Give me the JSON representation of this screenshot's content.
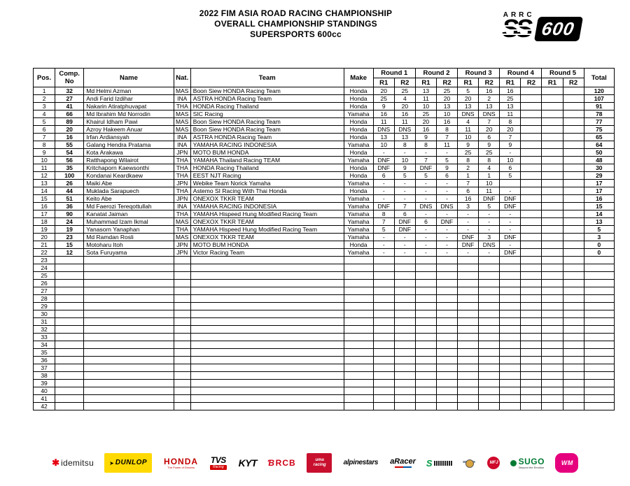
{
  "header": {
    "title_lines": [
      "2022 FIM ASIA ROAD RACING CHAMPIONSHIP",
      "OVERALL CHAMPIONSHIP STANDINGS",
      "SUPERSPORTS 600cc"
    ],
    "logo": {
      "series": "ARRC",
      "ss": "SS",
      "class_number": "600"
    }
  },
  "table": {
    "columns": {
      "pos": "Pos.",
      "comp_no_line1": "Comp.",
      "comp_no_line2": "No",
      "name": "Name",
      "nat": "Nat.",
      "team": "Team",
      "make": "Make",
      "rounds": [
        "Round 1",
        "Round 2",
        "Round 3",
        "Round 4",
        "Round 5"
      ],
      "race_sub": [
        "R1",
        "R2"
      ],
      "total": "Total"
    },
    "rows": [
      {
        "pos": "1",
        "no": "32",
        "name": "Md Helmi Azman",
        "nat": "MAS",
        "team": "Boon Siew HONDA Racing Team",
        "make": "Honda",
        "scores": [
          "20",
          "25",
          "13",
          "25",
          "5",
          "16",
          "16",
          "",
          "",
          ""
        ],
        "total": "120"
      },
      {
        "pos": "2",
        "no": "27",
        "name": "Andi Farid Izdihar",
        "nat": "INA",
        "team": "ASTRA HONDA Racing Team",
        "make": "Honda",
        "scores": [
          "25",
          "4",
          "11",
          "20",
          "20",
          "2",
          "25",
          "",
          "",
          ""
        ],
        "total": "107"
      },
      {
        "pos": "3",
        "no": "41",
        "name": "Nakarin Atiratphuvapat",
        "nat": "THA",
        "team": "HONDA Racing Thailand",
        "make": "Honda",
        "scores": [
          "9",
          "20",
          "10",
          "13",
          "13",
          "13",
          "13",
          "",
          "",
          ""
        ],
        "total": "91"
      },
      {
        "pos": "4",
        "no": "66",
        "name": "Md Ibrahim Md Norrodin",
        "nat": "MAS",
        "team": "SIC Racing",
        "make": "Yamaha",
        "scores": [
          "16",
          "16",
          "25",
          "10",
          "DNS",
          "DNS",
          "11",
          "",
          "",
          ""
        ],
        "total": "78"
      },
      {
        "pos": "5",
        "no": "89",
        "name": "Khairul Idham Pawi",
        "nat": "MAS",
        "team": "Boon Siew HONDA Racing Team",
        "make": "Honda",
        "scores": [
          "11",
          "11",
          "20",
          "16",
          "4",
          "7",
          "8",
          "",
          "",
          ""
        ],
        "total": "77"
      },
      {
        "pos": "6",
        "no": "20",
        "name": "Azroy Hakeem Anuar",
        "nat": "MAS",
        "team": "Boon Siew HONDA Racing Team",
        "make": "Honda",
        "scores": [
          "DNS",
          "DNS",
          "16",
          "8",
          "11",
          "20",
          "20",
          "",
          "",
          ""
        ],
        "total": "75"
      },
      {
        "pos": "7",
        "no": "16",
        "name": "Irfan Ardiansyah",
        "nat": "INA",
        "team": "ASTRA HONDA Racing Team",
        "make": "Honda",
        "scores": [
          "13",
          "13",
          "9",
          "7",
          "10",
          "6",
          "7",
          "",
          "",
          ""
        ],
        "total": "65"
      },
      {
        "pos": "8",
        "no": "55",
        "name": "Galang Hendra Pratama",
        "nat": "INA",
        "team": "YAMAHA RACING INDONESIA",
        "make": "Yamaha",
        "scores": [
          "10",
          "8",
          "8",
          "11",
          "9",
          "9",
          "9",
          "",
          "",
          ""
        ],
        "total": "64"
      },
      {
        "pos": "9",
        "no": "54",
        "name": "Kota Arakawa",
        "nat": "JPN",
        "team": "MOTO BUM HONDA",
        "make": "Honda",
        "scores": [
          "-",
          "-",
          "-",
          "-",
          "25",
          "25",
          "-",
          "",
          "",
          ""
        ],
        "total": "50"
      },
      {
        "pos": "10",
        "no": "56",
        "name": "Ratthapong Wilairot",
        "nat": "THA",
        "team": "YAMAHA Thailand Racing TEAM",
        "make": "Yamaha",
        "scores": [
          "DNF",
          "10",
          "7",
          "5",
          "8",
          "8",
          "10",
          "",
          "",
          ""
        ],
        "total": "48"
      },
      {
        "pos": "11",
        "no": "35",
        "name": "Kritchaporn Kaewsonthi",
        "nat": "THA",
        "team": "HONDA Racing Thailand",
        "make": "Honda",
        "scores": [
          "DNF",
          "9",
          "DNF",
          "9",
          "2",
          "4",
          "6",
          "",
          "",
          ""
        ],
        "total": "30"
      },
      {
        "pos": "12",
        "no": "100",
        "name": "Kondanai Keardkaew",
        "nat": "THA",
        "team": "EEST NJT Racing",
        "make": "Honda",
        "scores": [
          "6",
          "5",
          "5",
          "6",
          "1",
          "1",
          "5",
          "",
          "",
          ""
        ],
        "total": "29"
      },
      {
        "pos": "13",
        "no": "26",
        "name": "Maiki Abe",
        "nat": "JPN",
        "team": "Webike Team Norick Yamaha",
        "make": "Yamaha",
        "scores": [
          "-",
          "-",
          "-",
          "-",
          "7",
          "10",
          "",
          "",
          "",
          ""
        ],
        "total": "17"
      },
      {
        "pos": "14",
        "no": "44",
        "name": "Muklada Sarapuech",
        "nat": "THA",
        "team": "Astemo SI Racing With Thai Honda",
        "make": "Honda",
        "scores": [
          "-",
          "-",
          "-",
          "-",
          "6",
          "11",
          "-",
          "",
          "",
          ""
        ],
        "total": "17"
      },
      {
        "pos": "15",
        "no": "51",
        "name": "Keito Abe",
        "nat": "JPN",
        "team": "ONEXOX TKKR TEAM",
        "make": "Yamaha",
        "scores": [
          "-",
          "-",
          "-",
          "-",
          "16",
          "DNF",
          "DNF",
          "",
          "",
          ""
        ],
        "total": "16"
      },
      {
        "pos": "16",
        "no": "36",
        "name": "Md Faerozi Tereqottullah",
        "nat": "INA",
        "team": "YAMAHA RACING INDONESIA",
        "make": "Yamaha",
        "scores": [
          "DNF",
          "7",
          "DNS",
          "DNS",
          "3",
          "5",
          "DNF",
          "",
          "",
          ""
        ],
        "total": "15"
      },
      {
        "pos": "17",
        "no": "90",
        "name": "Kanatat Jaiman",
        "nat": "THA",
        "team": "YAMAHA Hispeed Hung Modified Racing Team",
        "make": "Yamaha",
        "scores": [
          "8",
          "6",
          "-",
          "-",
          "-",
          "-",
          "-",
          "",
          "",
          ""
        ],
        "total": "14"
      },
      {
        "pos": "18",
        "no": "24",
        "name": "Muhammad Izam Ikmal",
        "nat": "MAS",
        "team": "ONEXOX TKKR TEAM",
        "make": "Yamaha",
        "scores": [
          "7",
          "DNF",
          "6",
          "DNF",
          "-",
          "-",
          "-",
          "",
          "",
          ""
        ],
        "total": "13"
      },
      {
        "pos": "19",
        "no": "19",
        "name": "Yanasorn Yanaphan",
        "nat": "THA",
        "team": "YAMAHA Hispeed Hung Modified Racing Team",
        "make": "Yamaha",
        "scores": [
          "5",
          "DNF",
          "-",
          "-",
          "-",
          "-",
          "-",
          "",
          "",
          ""
        ],
        "total": "5"
      },
      {
        "pos": "20",
        "no": "23",
        "name": "Md Ramdan Rosli",
        "nat": "MAS",
        "team": "ONEXOX TKKR TEAM",
        "make": "Yamaha",
        "scores": [
          "-",
          "-",
          "-",
          "-",
          "DNF",
          "3",
          "DNF",
          "",
          "",
          ""
        ],
        "total": "3"
      },
      {
        "pos": "21",
        "no": "15",
        "name": "Motoharu Itoh",
        "nat": "JPN",
        "team": "MOTO BUM HONDA",
        "make": "Honda",
        "scores": [
          "-",
          "-",
          "-",
          "-",
          "DNF",
          "DNS",
          "-",
          "",
          "",
          ""
        ],
        "total": "0"
      },
      {
        "pos": "22",
        "no": "12",
        "name": "Sota Furuyama",
        "nat": "JPN",
        "team": "Victor Racing Team",
        "make": "Yamaha",
        "scores": [
          "-",
          "-",
          "-",
          "-",
          "-",
          "-",
          "DNF",
          "",
          "",
          ""
        ],
        "total": "0"
      }
    ],
    "empty_positions": [
      "23",
      "24",
      "25",
      "26",
      "27",
      "28",
      "29",
      "30",
      "31",
      "32",
      "33",
      "34",
      "35",
      "36",
      "37",
      "38",
      "39",
      "40",
      "41",
      "42"
    ]
  },
  "footer": {
    "sponsors": [
      {
        "id": "idemitsu",
        "label": "idemitsu"
      },
      {
        "id": "dunlop",
        "label": "DUNLOP"
      },
      {
        "id": "honda",
        "label": "HONDA",
        "tagline": "The Power of Dreams"
      },
      {
        "id": "tvs",
        "label": "TVS",
        "tagline": "Racing"
      },
      {
        "id": "kyt",
        "label": "KYT"
      },
      {
        "id": "rcb",
        "label": "RCB"
      },
      {
        "id": "uma",
        "label": "uma racing"
      },
      {
        "id": "alpinestars",
        "label": "alpinestars"
      },
      {
        "id": "aracer",
        "label": "aRacer"
      },
      {
        "id": "greens",
        "label": ""
      },
      {
        "id": "crest",
        "label": ""
      },
      {
        "id": "mfj",
        "label": "MFJ"
      },
      {
        "id": "sugo",
        "label": "SUGO",
        "tagline": "Beyond the Emotion"
      },
      {
        "id": "wm",
        "label": "WM"
      }
    ]
  }
}
